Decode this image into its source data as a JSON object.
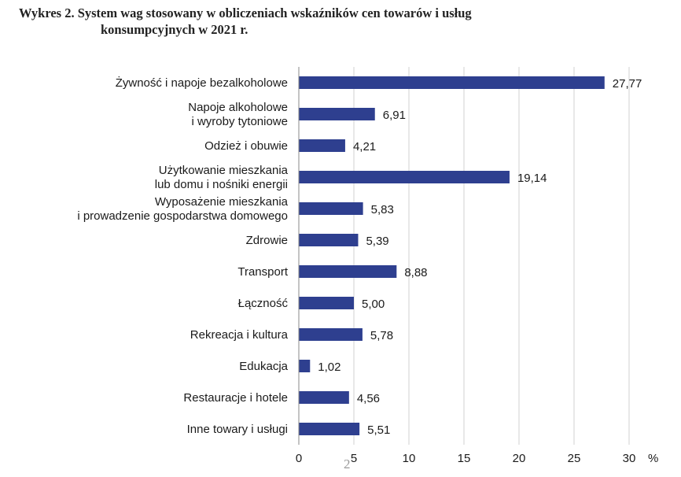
{
  "title": {
    "line1": "Wykres 2. System wag stosowany w obliczeniach wskaźników cen towarów i usług",
    "line2": "konsumpcyjnych w 2021 r."
  },
  "page_number": "2",
  "chart_data": {
    "type": "bar",
    "orientation": "horizontal",
    "categories": [
      "Żywność i napoje bezalkoholowe",
      "Napoje alkoholowe\ni wyroby tytoniowe",
      "Odzież i obuwie",
      "Użytkowanie mieszkania\nlub domu i nośniki energii",
      "Wyposażenie mieszkania\ni prowadzenie gospodarstwa domowego",
      "Zdrowie",
      "Transport",
      "Łączność",
      "Rekreacja i kultura",
      "Edukacja",
      "Restauracje i hotele",
      "Inne towary i usługi"
    ],
    "values": [
      27.77,
      6.91,
      4.21,
      19.14,
      5.83,
      5.39,
      8.88,
      5.0,
      5.78,
      1.02,
      4.56,
      5.51
    ],
    "value_labels": [
      "27,77",
      "6,91",
      "4,21",
      "19,14",
      "5,83",
      "5,39",
      "8,88",
      "5,00",
      "5,78",
      "1,02",
      "4,56",
      "5,51"
    ],
    "xticks": [
      0,
      5,
      10,
      15,
      20,
      25,
      30
    ],
    "xunit": "%",
    "xlim": [
      0,
      30
    ],
    "grid": true,
    "bar_color": "#2e3f8f",
    "grid_color": "#d0d0d0"
  }
}
